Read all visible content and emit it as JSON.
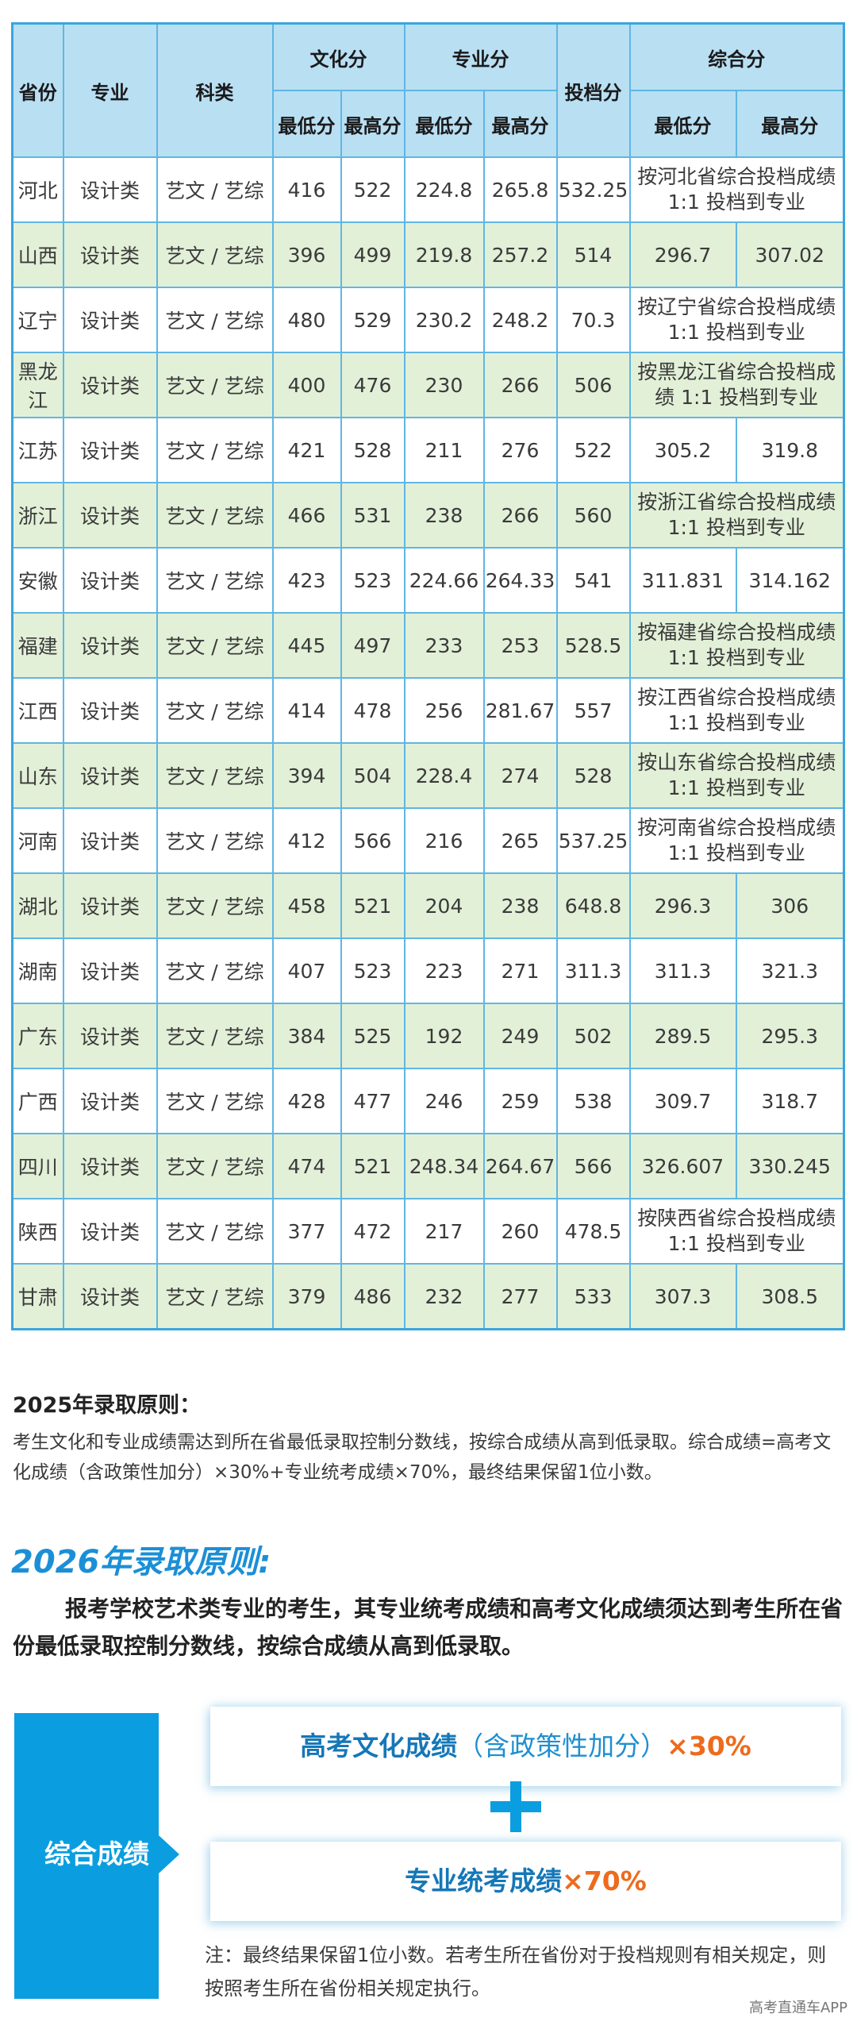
{
  "table": {
    "headers": {
      "province": "省份",
      "major": "专业",
      "category": "科类",
      "culture": "文化分",
      "professional": "专业分",
      "filing": "投档分",
      "composite": "综合分",
      "min": "最低分",
      "max": "最高分"
    },
    "rows": [
      {
        "province": "河北",
        "major": "设计类",
        "category": "艺文 / 艺综",
        "culture_min": "416",
        "culture_max": "522",
        "pro_min": "224.8",
        "pro_max": "265.8",
        "filing": "532.25",
        "composite_note": "按河北省综合投档成绩 1:1 投档到专业"
      },
      {
        "province": "山西",
        "major": "设计类",
        "category": "艺文 / 艺综",
        "culture_min": "396",
        "culture_max": "499",
        "pro_min": "219.8",
        "pro_max": "257.2",
        "filing": "514",
        "composite_min": "296.7",
        "composite_max": "307.02"
      },
      {
        "province": "辽宁",
        "major": "设计类",
        "category": "艺文 / 艺综",
        "culture_min": "480",
        "culture_max": "529",
        "pro_min": "230.2",
        "pro_max": "248.2",
        "filing": "70.3",
        "composite_note": "按辽宁省综合投档成绩 1:1 投档到专业"
      },
      {
        "province": "黑龙江",
        "major": "设计类",
        "category": "艺文 / 艺综",
        "culture_min": "400",
        "culture_max": "476",
        "pro_min": "230",
        "pro_max": "266",
        "filing": "506",
        "composite_note": "按黑龙江省综合投档成绩 1:1 投档到专业"
      },
      {
        "province": "江苏",
        "major": "设计类",
        "category": "艺文 / 艺综",
        "culture_min": "421",
        "culture_max": "528",
        "pro_min": "211",
        "pro_max": "276",
        "filing": "522",
        "composite_min": "305.2",
        "composite_max": "319.8"
      },
      {
        "province": "浙江",
        "major": "设计类",
        "category": "艺文 / 艺综",
        "culture_min": "466",
        "culture_max": "531",
        "pro_min": "238",
        "pro_max": "266",
        "filing": "560",
        "composite_note": "按浙江省综合投档成绩 1:1 投档到专业"
      },
      {
        "province": "安徽",
        "major": "设计类",
        "category": "艺文 / 艺综",
        "culture_min": "423",
        "culture_max": "523",
        "pro_min": "224.66",
        "pro_max": "264.33",
        "filing": "541",
        "composite_min": "311.831",
        "composite_max": "314.162"
      },
      {
        "province": "福建",
        "major": "设计类",
        "category": "艺文 / 艺综",
        "culture_min": "445",
        "culture_max": "497",
        "pro_min": "233",
        "pro_max": "253",
        "filing": "528.5",
        "composite_note": "按福建省综合投档成绩 1:1 投档到专业"
      },
      {
        "province": "江西",
        "major": "设计类",
        "category": "艺文 / 艺综",
        "culture_min": "414",
        "culture_max": "478",
        "pro_min": "256",
        "pro_max": "281.67",
        "filing": "557",
        "composite_note": "按江西省综合投档成绩 1:1 投档到专业"
      },
      {
        "province": "山东",
        "major": "设计类",
        "category": "艺文 / 艺综",
        "culture_min": "394",
        "culture_max": "504",
        "pro_min": "228.4",
        "pro_max": "274",
        "filing": "528",
        "composite_note": "按山东省综合投档成绩 1:1 投档到专业"
      },
      {
        "province": "河南",
        "major": "设计类",
        "category": "艺文 / 艺综",
        "culture_min": "412",
        "culture_max": "566",
        "pro_min": "216",
        "pro_max": "265",
        "filing": "537.25",
        "composite_note": "按河南省综合投档成绩 1:1 投档到专业"
      },
      {
        "province": "湖北",
        "major": "设计类",
        "category": "艺文 / 艺综",
        "culture_min": "458",
        "culture_max": "521",
        "pro_min": "204",
        "pro_max": "238",
        "filing": "648.8",
        "composite_min": "296.3",
        "composite_max": "306"
      },
      {
        "province": "湖南",
        "major": "设计类",
        "category": "艺文 / 艺综",
        "culture_min": "407",
        "culture_max": "523",
        "pro_min": "223",
        "pro_max": "271",
        "filing": "311.3",
        "composite_min": "311.3",
        "composite_max": "321.3"
      },
      {
        "province": "广东",
        "major": "设计类",
        "category": "艺文 / 艺综",
        "culture_min": "384",
        "culture_max": "525",
        "pro_min": "192",
        "pro_max": "249",
        "filing": "502",
        "composite_min": "289.5",
        "composite_max": "295.3"
      },
      {
        "province": "广西",
        "major": "设计类",
        "category": "艺文 / 艺综",
        "culture_min": "428",
        "culture_max": "477",
        "pro_min": "246",
        "pro_max": "259",
        "filing": "538",
        "composite_min": "309.7",
        "composite_max": "318.7"
      },
      {
        "province": "四川",
        "major": "设计类",
        "category": "艺文 / 艺综",
        "culture_min": "474",
        "culture_max": "521",
        "pro_min": "248.34",
        "pro_max": "264.67",
        "filing": "566",
        "composite_min": "326.607",
        "composite_max": "330.245"
      },
      {
        "province": "陕西",
        "major": "设计类",
        "category": "艺文 / 艺综",
        "culture_min": "377",
        "culture_max": "472",
        "pro_min": "217",
        "pro_max": "260",
        "filing": "478.5",
        "composite_note": "按陕西省综合投档成绩 1:1 投档到专业"
      },
      {
        "province": "甘肃",
        "major": "设计类",
        "category": "艺文 / 艺综",
        "culture_min": "379",
        "culture_max": "486",
        "pro_min": "232",
        "pro_max": "277",
        "filing": "533",
        "composite_min": "307.3",
        "composite_max": "308.5"
      }
    ]
  },
  "principles_2025": {
    "title": "2025年录取原则：",
    "body": "考生文化和专业成绩需达到所在省最低录取控制分数线，按综合成绩从高到低录取。综合成绩=高考文化成绩（含政策性加分）×30%+专业统考成绩×70%，最终结果保留1位小数。"
  },
  "principles_2026": {
    "title": "2026年录取原则:",
    "body": "报考学校艺术类专业的考生，其专业统考成绩和高考文化成绩须达到考生所在省份最低录取控制分数线，按综合成绩从高到低录取。"
  },
  "formula": {
    "label": "综合成绩",
    "part1_main": "高考文化成绩",
    "part1_paren": "（含政策性加分）",
    "part1_weight": "×30%",
    "part2_main": "专业统考成绩",
    "part2_weight": "×70%",
    "note": "注：最终结果保留1位小数。若考生所在省份对于投档规则有相关规定，则按照考生所在省份相关规定执行。"
  },
  "watermark": "高考直通车APP",
  "colors": {
    "header_bg": "#b9dff3",
    "alt_row_bg": "#e3f0d8",
    "border": "#5fb6e3",
    "accent_blue": "#0a9ee0",
    "accent_orange": "#ee6a1d"
  }
}
